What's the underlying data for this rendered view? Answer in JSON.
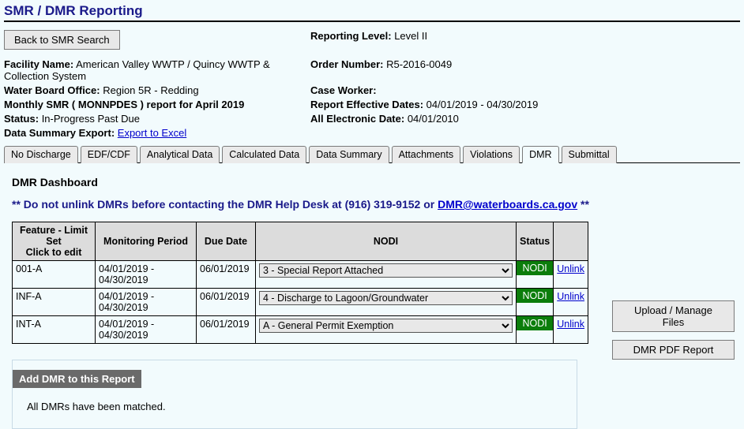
{
  "page_title": "SMR / DMR Reporting",
  "back_button": "Back to SMR Search",
  "left_info": {
    "facility_label": "Facility Name:",
    "facility_value": "American Valley WWTP / Quincy WWTP & Collection System",
    "board_label": "Water Board Office:",
    "board_value": "Region 5R - Redding",
    "report_line": "Monthly SMR ( MONNPDES ) report for April 2019",
    "status_label": "Status:",
    "status_value": "In-Progress Past Due",
    "export_label": "Data Summary Export:",
    "export_link": "Export to Excel"
  },
  "right_info": {
    "level_label": "Reporting Level:",
    "level_value": "Level II",
    "order_label": "Order Number:",
    "order_value": "R5-2016-0049",
    "case_label": "Case Worker:",
    "case_value": "",
    "dates_label": "Report Effective Dates:",
    "dates_value": "04/01/2019 - 04/30/2019",
    "elec_label": "All Electronic Date:",
    "elec_value": "04/01/2010"
  },
  "tabs": [
    "No Discharge",
    "EDF/CDF",
    "Analytical Data",
    "Calculated Data",
    "Data Summary",
    "Attachments",
    "Violations",
    "DMR",
    "Submittal"
  ],
  "active_tab": "DMR",
  "dashboard_title": "DMR Dashboard",
  "warning_prefix": "** Do not unlink DMRs before contacting the DMR Help Desk at (916) 319-9152 or ",
  "warning_link": "DMR@waterboards.ca.gov",
  "warning_suffix": " **",
  "headers": {
    "feature": "Feature - Limit Set",
    "feature_sub": "Click to edit",
    "period": "Monitoring Period",
    "due": "Due Date",
    "nodi": "NODI",
    "status": "Status",
    "action": ""
  },
  "nodi_options": [
    "3 - Special Report Attached",
    "4 - Discharge to Lagoon/Groundwater",
    "A - General Permit Exemption"
  ],
  "rows": [
    {
      "feature": "001-A",
      "period": "04/01/2019 - 04/30/2019",
      "due": "06/01/2019",
      "nodi": "3 - Special Report Attached",
      "status": "NODI",
      "action": "Unlink"
    },
    {
      "feature": "INF-A",
      "period": "04/01/2019 - 04/30/2019",
      "due": "06/01/2019",
      "nodi": "4 - Discharge to Lagoon/Groundwater",
      "status": "NODI",
      "action": "Unlink"
    },
    {
      "feature": "INT-A",
      "period": "04/01/2019 - 04/30/2019",
      "due": "06/01/2019",
      "nodi": "A - General Permit Exemption",
      "status": "NODI",
      "action": "Unlink"
    }
  ],
  "side_buttons": {
    "upload": "Upload / Manage Files",
    "pdf": "DMR PDF Report"
  },
  "add_dmr": "Add DMR to this Report",
  "match_msg": "All DMRs have been matched."
}
